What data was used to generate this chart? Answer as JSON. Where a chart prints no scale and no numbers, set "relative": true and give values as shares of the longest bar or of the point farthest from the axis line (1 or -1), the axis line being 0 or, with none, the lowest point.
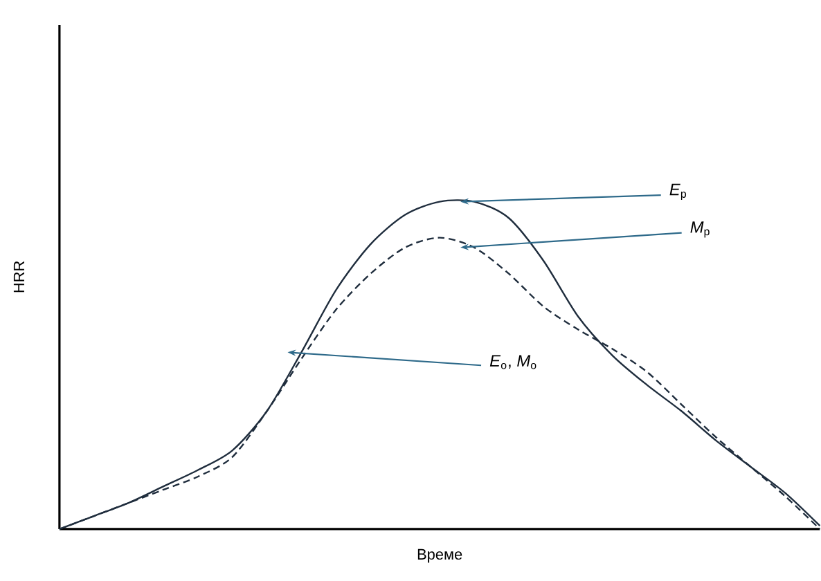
{
  "chart_data": {
    "type": "line",
    "relative": true,
    "xlabel": "Време",
    "ylabel": "HRR",
    "marker": "none",
    "categories": [
      null,
      null,
      null,
      null,
      null,
      null,
      null,
      null,
      null,
      null,
      null,
      null,
      null,
      null,
      null,
      null,
      null,
      null,
      null,
      null,
      null,
      null,
      null
    ],
    "series": [
      {
        "color": "#1f2d3d",
        "line_style": "solid",
        "values": [
          0,
          0.04,
          0.08,
          0.13,
          0.18,
          0.24,
          0.36,
          0.54,
          0.73,
          0.87,
          0.96,
          1,
          1,
          0.95,
          0.82,
          0.65,
          0.53,
          0.44,
          0.36,
          0.27,
          0.19,
          0.11,
          0.01
        ]
      },
      {
        "color": "#1f2d3d",
        "line_style": "dashed",
        "values": [
          0,
          0.04,
          0.08,
          0.12,
          0.16,
          0.22,
          0.36,
          0.52,
          0.67,
          0.78,
          0.86,
          0.89,
          0.86,
          0.78,
          0.68,
          0.61,
          0.55,
          0.48,
          0.38,
          0.28,
          0.19,
          0.1,
          0
        ]
      }
    ],
    "annotations": [
      "*E*$_{p}$",
      "*M*$_{p}$",
      "*E*$_{o}$, *M*$_{o}$"
    ]
  }
}
